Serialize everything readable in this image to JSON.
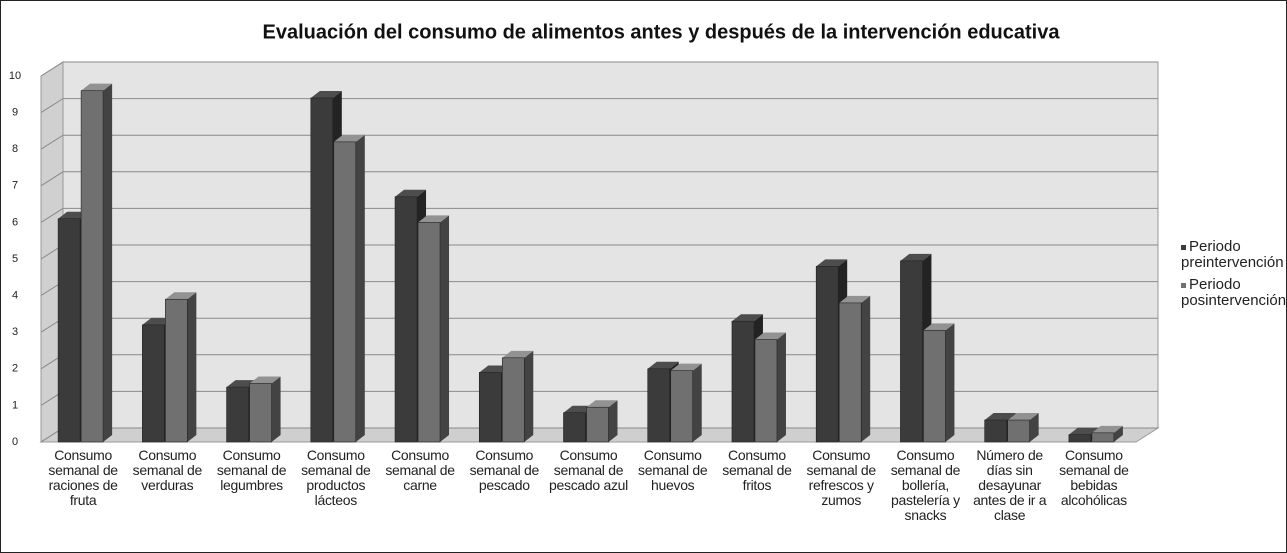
{
  "chart_data": {
    "type": "bar3d",
    "title": "Evaluación del consumo de alimentos antes y después de la intervención educativa",
    "categories": [
      "Consumo semanal de raciones de fruta",
      "Consumo semanal de verduras",
      "Consumo semanal de legumbres",
      "Consumo semanal de productos lácteos",
      "Consumo semanal de carne",
      "Consumo semanal de pescado",
      "Consumo semanal de pescado azul",
      "Consumo semanal de huevos",
      "Consumo semanal de fritos",
      "Consumo semanal de refrescos y zumos",
      "Consumo semanal de bollería, pastelería y snacks",
      "Número de días sin desayunar antes de ir a clase",
      "Consumo semanal de bebidas alcohólicas"
    ],
    "series": [
      {
        "name": "Periodo preintervención",
        "color": "#3b3b3b",
        "values": [
          6.1,
          3.2,
          1.5,
          9.4,
          6.7,
          1.9,
          0.8,
          2.0,
          3.3,
          4.8,
          4.95,
          0.6,
          0.2
        ]
      },
      {
        "name": "Periodo posintervención",
        "color": "#707070",
        "values": [
          9.6,
          3.9,
          1.6,
          8.2,
          6.0,
          2.3,
          0.95,
          1.95,
          2.8,
          3.8,
          3.05,
          0.6,
          0.25
        ]
      }
    ],
    "ylim": [
      0,
      10
    ],
    "yticks": [
      0,
      1,
      2,
      3,
      4,
      5,
      6,
      7,
      8,
      9,
      10
    ],
    "grid": true,
    "legend": "right"
  }
}
